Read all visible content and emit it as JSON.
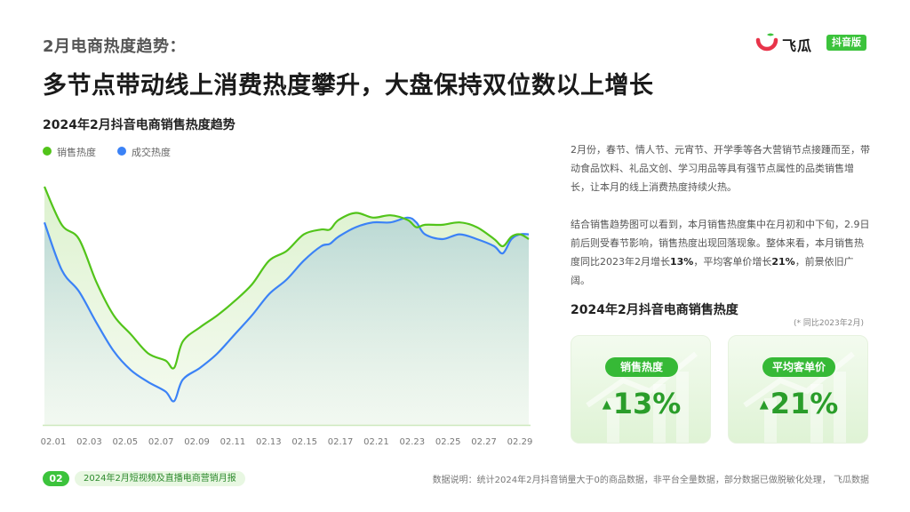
{
  "header": {
    "section_label": "2月电商热度趋势：",
    "headline": "多节点带动线上消费热度攀升，大盘保持双位数以上增长"
  },
  "brand": {
    "name": "飞瓜",
    "tag": "抖音版",
    "logo_colors": [
      "#e8344a",
      "#3cc33c"
    ]
  },
  "chart_data": {
    "type": "area",
    "title": "2024年2月抖音电商销售热度趋势",
    "x_tick_labels": [
      "02.01",
      "02.03",
      "02.05",
      "02.07",
      "02.09",
      "02.11",
      "02.13",
      "02.15",
      "02.17",
      "02.21",
      "02.23",
      "02.25",
      "02.27",
      "02.29"
    ],
    "x_label": "",
    "y_label": "",
    "y_axis_visible": false,
    "grid": false,
    "legend_position": "top-left",
    "series": [
      {
        "name": "销售热度",
        "color": "#52c41a",
        "points": [
          [
            1,
            100
          ],
          [
            2,
            84
          ],
          [
            3,
            78
          ],
          [
            4,
            60
          ],
          [
            5,
            46
          ],
          [
            6,
            38
          ],
          [
            7,
            30
          ],
          [
            8,
            27
          ],
          [
            8.5,
            24
          ],
          [
            9,
            35
          ],
          [
            10,
            41
          ],
          [
            11,
            46
          ],
          [
            12,
            52
          ],
          [
            13,
            59
          ],
          [
            14,
            69
          ],
          [
            15,
            73
          ],
          [
            16,
            80
          ],
          [
            17,
            82
          ],
          [
            17.5,
            82
          ],
          [
            18,
            86
          ],
          [
            19,
            89
          ],
          [
            20,
            87
          ],
          [
            21,
            88
          ],
          [
            22,
            86
          ],
          [
            22.5,
            83
          ],
          [
            23,
            84
          ],
          [
            24,
            84
          ],
          [
            25,
            85
          ],
          [
            26,
            83
          ],
          [
            27,
            78
          ],
          [
            27.5,
            75
          ],
          [
            28,
            79
          ],
          [
            28.5,
            80
          ],
          [
            29,
            78
          ]
        ]
      },
      {
        "name": "成交热度",
        "color": "#3b82f6",
        "points": [
          [
            1,
            85
          ],
          [
            2,
            65
          ],
          [
            3,
            56
          ],
          [
            4,
            43
          ],
          [
            5,
            31
          ],
          [
            6,
            23
          ],
          [
            7,
            18
          ],
          [
            8,
            14
          ],
          [
            8.5,
            10
          ],
          [
            9,
            19
          ],
          [
            10,
            24
          ],
          [
            11,
            30
          ],
          [
            12,
            38
          ],
          [
            13,
            46
          ],
          [
            14,
            55
          ],
          [
            15,
            61
          ],
          [
            16,
            69
          ],
          [
            17,
            75
          ],
          [
            17.5,
            76
          ],
          [
            18,
            79
          ],
          [
            19,
            83
          ],
          [
            20,
            85
          ],
          [
            21,
            85
          ],
          [
            22,
            87
          ],
          [
            22.5,
            85
          ],
          [
            23,
            80
          ],
          [
            24,
            78
          ],
          [
            25,
            80
          ],
          [
            26,
            78
          ],
          [
            27,
            75
          ],
          [
            27.5,
            72
          ],
          [
            28,
            78
          ],
          [
            28.5,
            80
          ],
          [
            29,
            80
          ]
        ]
      }
    ]
  },
  "description": {
    "para1": "2月份，春节、情人节、元宵节、开学季等各大营销节点接踵而至，带动食品饮料、礼品文创、学习用品等具有强节点属性的品类销售增长，让本月的线上消费热度持续火热。",
    "para2_prefix": "结合销售趋势图可以看到，本月销售热度集中在月初和中下旬，2.9日前后则受春节影响，销售热度出现回落现象。整体来看，本月销售热度同比2023年2月增长",
    "para2_growth_sales": "13%",
    "para2_middle": "，平均客单价增长",
    "para2_growth_price": "21%",
    "para2_suffix": "，前景依旧广阔。"
  },
  "kpi": {
    "title": "2024年2月抖音电商销售热度",
    "note": "(* 同比2023年2月)",
    "arrow_icon": "up-triangle-icon",
    "cards": [
      {
        "label": "销售热度",
        "value": "13%"
      },
      {
        "label": "平均客单价",
        "value": "21%"
      }
    ]
  },
  "footer": {
    "page_number": "02",
    "report_name": "2024年2月短视频及直播电商营销月报",
    "data_source": "数据说明：统计2024年2月抖音销量大于0的商品数据，非平台全量数据，部分数据已做脱敏化处理， 飞瓜数据"
  }
}
